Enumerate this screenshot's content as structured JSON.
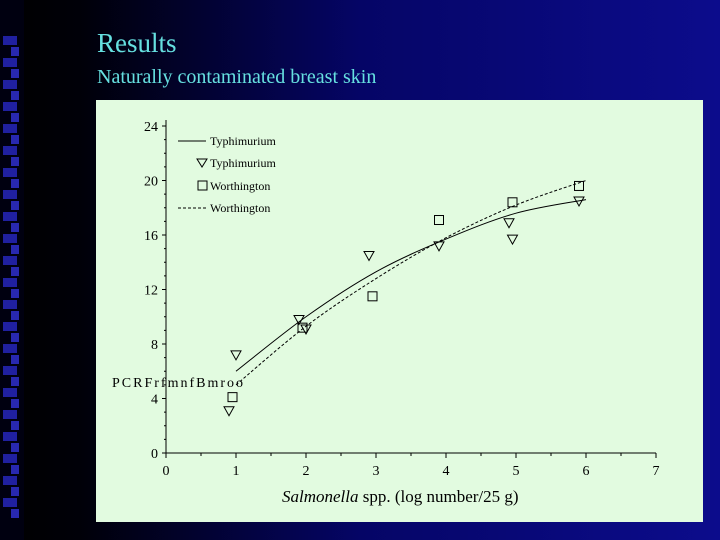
{
  "slide": {
    "title": "Results",
    "subtitle": "Naturally contaminated breast skin"
  },
  "colors": {
    "title_text": "#66e0e0",
    "chart_background": "#e2fbe0",
    "slide_background": "#0a0a6e"
  },
  "chart_data": {
    "type": "scatter",
    "xlabel_italic": "Salmonella",
    "xlabel_rest": " spp. (log number/25 g)",
    "ylabel": "",
    "garbled_label": "PCRFrfmnfBmroo",
    "xlim": [
      0,
      7
    ],
    "ylim": [
      0,
      24
    ],
    "x_ticks": [
      "0",
      "1",
      "2",
      "3",
      "4",
      "5",
      "6",
      "7"
    ],
    "y_ticks": [
      "0",
      "4",
      "8",
      "12",
      "16",
      "20",
      "24"
    ],
    "legend_placement": "top-left",
    "legend": [
      {
        "label": "Typhimurium",
        "style": "solid-line"
      },
      {
        "label": "Typhimurium",
        "style": "triangle-marker"
      },
      {
        "label": "Worthington",
        "style": "square-marker"
      },
      {
        "label": "Worthington",
        "style": "dashed-line"
      }
    ],
    "series": [
      {
        "name": "Typhimurium",
        "kind": "points",
        "marker": "triangle",
        "points": [
          [
            1,
            7.2
          ],
          [
            0.9,
            3.1
          ],
          [
            1.9,
            9.8
          ],
          [
            2,
            9.1
          ],
          [
            2.9,
            14.5
          ],
          [
            3.9,
            15.2
          ],
          [
            4.9,
            16.9
          ],
          [
            4.95,
            15.7
          ],
          [
            5.9,
            18.5
          ]
        ]
      },
      {
        "name": "Worthington",
        "kind": "points",
        "marker": "square",
        "points": [
          [
            0.95,
            4.1
          ],
          [
            1.95,
            9.2
          ],
          [
            2.95,
            11.5
          ],
          [
            3.9,
            17.1
          ],
          [
            4.95,
            18.4
          ],
          [
            5.9,
            19.6
          ]
        ]
      },
      {
        "name": "Typhimurium",
        "kind": "line",
        "style": "solid",
        "points": [
          [
            1,
            6.0
          ],
          [
            2,
            10.0
          ],
          [
            3,
            13.3
          ],
          [
            4,
            15.7
          ],
          [
            5,
            17.6
          ],
          [
            6,
            18.6
          ]
        ]
      },
      {
        "name": "Worthington",
        "kind": "line",
        "style": "dashed",
        "points": [
          [
            1,
            5.0
          ],
          [
            2,
            9.3
          ],
          [
            3,
            12.8
          ],
          [
            4,
            15.8
          ],
          [
            5,
            18.2
          ],
          [
            6,
            20.0
          ]
        ]
      }
    ]
  }
}
